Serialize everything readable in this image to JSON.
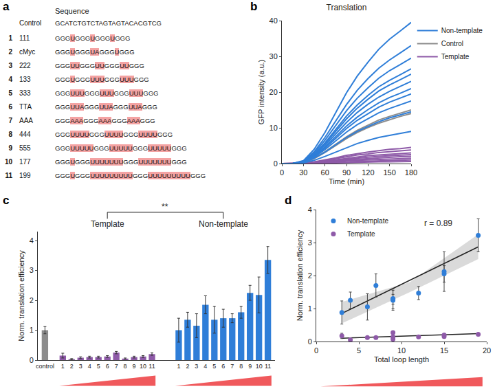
{
  "panel_labels": [
    "a",
    "b",
    "c",
    "d"
  ],
  "table": {
    "header": "Sequence",
    "control": {
      "name": "Control",
      "sequence": [
        "GCATCTGTCTAGTAGTACACGTCG"
      ]
    },
    "rows": [
      {
        "number": "1",
        "name": "111",
        "sequence": [
          "GGG",
          "U",
          "GGG",
          "U",
          "GGG",
          "U",
          "GGG"
        ]
      },
      {
        "number": "2",
        "name": "cMyc",
        "sequence": [
          "GGG",
          "U",
          "GGG",
          "UA",
          "GGG",
          "U",
          "GGG"
        ]
      },
      {
        "number": "3",
        "name": "222",
        "sequence": [
          "GGG",
          "UU",
          "GGG",
          "UU",
          "GGG",
          "UU",
          "GGG"
        ]
      },
      {
        "number": "4",
        "name": "133",
        "sequence": [
          "GGG",
          "U",
          "GGG",
          "UUU",
          "GGG",
          "UUU",
          "GGG"
        ]
      },
      {
        "number": "5",
        "name": "333",
        "sequence": [
          "GGG",
          "UUU",
          "GGG",
          "UUU",
          "GGG",
          "UUU",
          "GGG"
        ]
      },
      {
        "number": "6",
        "name": "TTA",
        "sequence": [
          "GGG",
          "UUA",
          "GGG",
          "UUA",
          "GGG",
          "UUA",
          "GGG"
        ]
      },
      {
        "number": "7",
        "name": "AAA",
        "sequence": [
          "GGG",
          "AAA",
          "GGG",
          "AAA",
          "GGG",
          "AAA",
          "GGG"
        ]
      },
      {
        "number": "8",
        "name": "444",
        "sequence": [
          "GGG",
          "UUUU",
          "GGG",
          "UUUU",
          "GGG",
          "UUUU",
          "GGG"
        ]
      },
      {
        "number": "9",
        "name": "555",
        "sequence": [
          "GGG",
          "UUUUU",
          "GGG",
          "UUUUU",
          "GGG",
          "UUUUU",
          "GGG"
        ]
      },
      {
        "number": "10",
        "name": "177",
        "sequence": [
          "GGG",
          "U",
          "GGG",
          "UUUUUUU",
          "GGG",
          "UUUUUUU",
          "GGG"
        ]
      },
      {
        "number": "11",
        "name": "199",
        "sequence": [
          "GGG",
          "U",
          "GGG",
          "UUUUUUUUU",
          "GGG",
          "UUUUUUUUU",
          "GGG"
        ]
      }
    ]
  },
  "chart_data": [
    {
      "type": "line",
      "title": "Translation",
      "xlabel": "Time (min)",
      "ylabel": "GFP intensity (a.u.)",
      "x": [
        0,
        15,
        30,
        45,
        60,
        75,
        90,
        105,
        120,
        135,
        150,
        165,
        180
      ],
      "xlim": [
        0,
        180
      ],
      "xticks": [
        0,
        30,
        60,
        90,
        120,
        150,
        180
      ],
      "ylim": [
        0,
        40
      ],
      "yticks": [
        0,
        10,
        20,
        30,
        40
      ],
      "legend": "top right",
      "series": [
        {
          "name": "Non-template",
          "color": "#2f7ed8",
          "values": [
            [
              0,
              0,
              0.8,
              4.0,
              8.7,
              14.2,
              19.8,
              24.5,
              28.4,
              32.0,
              34.8,
              37.1,
              39.5
            ],
            [
              0,
              0,
              0.7,
              3.3,
              7.3,
              11.9,
              16.5,
              20.5,
              23.8,
              26.7,
              29.0,
              31.0,
              33
            ],
            [
              0,
              0,
              0.6,
              3.0,
              6.5,
              10.6,
              14.8,
              18.3,
              21.2,
              23.9,
              26.0,
              27.7,
              29.5
            ],
            [
              0,
              0,
              0.5,
              2.7,
              5.8,
              9.5,
              13.3,
              16.4,
              19.1,
              21.5,
              23.3,
              24.9,
              26.5
            ],
            [
              0,
              0,
              0.5,
              2.5,
              5.5,
              9.0,
              12.5,
              15.5,
              18.0,
              20.3,
              22.0,
              23.5,
              25
            ],
            [
              0,
              0,
              0.5,
              2.3,
              5.1,
              8.3,
              11.5,
              14.3,
              16.6,
              18.6,
              20.2,
              21.6,
              23
            ],
            [
              0,
              0,
              0.4,
              2.1,
              4.6,
              7.6,
              10.5,
              13.0,
              15.1,
              17.0,
              18.5,
              19.7,
              21
            ],
            [
              0,
              0,
              0.4,
              2.0,
              4.3,
              7.0,
              9.8,
              12.1,
              14.0,
              15.8,
              17.2,
              18.3,
              19.5
            ],
            [
              0,
              0,
              0.4,
              1.8,
              3.9,
              6.3,
              8.8,
              10.9,
              12.6,
              14.2,
              15.4,
              16.5,
              17.5
            ],
            [
              0,
              0,
              0.3,
              1.5,
              3.2,
              5.2,
              7.3,
              9.0,
              10.4,
              11.7,
              12.8,
              13.6,
              14.5
            ],
            [
              0,
              0,
              0.2,
              0.9,
              2.0,
              3.2,
              4.5,
              5.6,
              6.5,
              7.3,
              7.9,
              8.5,
              9
            ]
          ]
        },
        {
          "name": "Control",
          "color": "#8c8c8c",
          "values": [
            [
              0,
              0,
              0.3,
              1.5,
              3.3,
              5.4,
              7.5,
              9.3,
              10.8,
              12.2,
              13.2,
              14.1,
              15
            ],
            [
              0,
              0,
              0.3,
              1.4,
              3.1,
              5.0,
              7.0,
              8.7,
              10.1,
              11.3,
              12.3,
              13.2,
              14
            ]
          ]
        },
        {
          "name": "Template",
          "color": "#8e5aa8",
          "values": [
            [
              0,
              0,
              0.1,
              0.5,
              1.0,
              1.6,
              2.3,
              2.8,
              3.2,
              3.6,
              4.0,
              4.2,
              4.5
            ],
            [
              0,
              0,
              0.1,
              0.4,
              0.8,
              1.4,
              1.9,
              2.4,
              2.7,
              3.1,
              3.3,
              3.6,
              3.8
            ],
            [
              0,
              0,
              0.1,
              0.3,
              0.7,
              1.1,
              1.5,
              1.9,
              2.2,
              2.4,
              2.6,
              2.8,
              3
            ],
            [
              0,
              0,
              0,
              0.3,
              0.6,
              0.9,
              1.3,
              1.6,
              1.8,
              2.0,
              2.2,
              2.4,
              2.5
            ],
            [
              0,
              0,
              0,
              0.2,
              0.4,
              0.7,
              1.0,
              1.2,
              1.4,
              1.6,
              1.8,
              1.9,
              2
            ],
            [
              0,
              0,
              0,
              0.2,
              0.3,
              0.5,
              0.8,
              0.9,
              1.1,
              1.2,
              1.3,
              1.4,
              1.5
            ],
            [
              0,
              0,
              0,
              0.1,
              0.2,
              0.4,
              0.5,
              0.6,
              0.7,
              0.8,
              0.9,
              0.9,
              1
            ],
            [
              0,
              0,
              0,
              0.1,
              0.1,
              0.2,
              0.3,
              0.4,
              0.4,
              0.5,
              0.5,
              0.6,
              0.6
            ]
          ]
        }
      ]
    },
    {
      "type": "bar",
      "ylabel": "Norm. translation efficiency",
      "ylim": [
        0,
        4.3
      ],
      "yticks": [
        0,
        1,
        2,
        3,
        4
      ],
      "significance": "**",
      "series": [
        {
          "categories": [
            "control"
          ],
          "color": "#8c8c8c",
          "values": [
            1.0
          ],
          "errors": [
            0.12
          ]
        },
        {
          "name": "Template",
          "color": "#8e5aa8",
          "categories": [
            "1",
            "2",
            "3",
            "4",
            "5",
            "6",
            "7",
            "8",
            "9",
            "10",
            "11"
          ],
          "values": [
            0.15,
            0.03,
            0.08,
            0.1,
            0.1,
            0.12,
            0.25,
            0.05,
            0.1,
            0.12,
            0.2
          ],
          "errors": [
            0.08,
            0.02,
            0.03,
            0.03,
            0.03,
            0.03,
            0.04,
            0.02,
            0.03,
            0.03,
            0.04
          ]
        },
        {
          "name": "Non-template",
          "color": "#2f7ed8",
          "categories": [
            "1",
            "2",
            "3",
            "4",
            "5",
            "6",
            "7",
            "8",
            "9",
            "10",
            "11"
          ],
          "values": [
            1.0,
            1.35,
            1.15,
            1.85,
            1.35,
            1.4,
            1.4,
            1.6,
            2.25,
            2.18,
            3.35
          ],
          "errors": [
            0.4,
            0.25,
            0.4,
            0.3,
            0.45,
            0.3,
            0.15,
            0.2,
            0.25,
            0.6,
            0.45
          ]
        }
      ]
    },
    {
      "type": "scatter",
      "xlabel": "Total loop length",
      "ylabel": "Norm. translation efficiency",
      "xlim": [
        0,
        20
      ],
      "xticks": [
        0,
        5,
        10,
        15,
        20
      ],
      "ylim": [
        0,
        4
      ],
      "yticks": [
        0,
        1,
        2,
        3,
        4
      ],
      "legend": "top left",
      "annotation": "r = 0.89",
      "series": [
        {
          "name": "Non-template",
          "color": "#2f7ed8",
          "x": [
            3,
            4,
            6,
            7,
            9,
            9,
            9,
            12,
            15,
            15,
            19
          ],
          "values": [
            0.88,
            1.25,
            1.05,
            1.7,
            1.25,
            1.3,
            1.28,
            1.47,
            2.05,
            2.12,
            3.22
          ],
          "errors": [
            0.35,
            0.25,
            0.4,
            0.35,
            0.3,
            0.3,
            0.15,
            0.2,
            0.25,
            0.6,
            0.5
          ],
          "fit": {
            "x": [
              3,
              19
            ],
            "values": [
              0.85,
              2.87
            ]
          },
          "band": {
            "x": [
              3,
              11,
              19
            ],
            "lower": [
              0.55,
              1.5,
              2.5
            ],
            "upper": [
              1.2,
              1.8,
              3.25
            ]
          }
        },
        {
          "name": "Template",
          "color": "#8e5aa8",
          "x": [
            3,
            4,
            6,
            7,
            9,
            9,
            9,
            12,
            15,
            15,
            19
          ],
          "values": [
            0.17,
            0.05,
            0.12,
            0.12,
            0.14,
            0.27,
            0.07,
            0.14,
            0.15,
            0.2,
            0.22
          ],
          "errors": [
            0.08,
            0.03,
            0.03,
            0.03,
            0.03,
            0.04,
            0.02,
            0.03,
            0.03,
            0.04,
            0.04
          ],
          "fit": {
            "x": [
              3,
              19
            ],
            "values": [
              0.1,
              0.24
            ]
          }
        }
      ]
    }
  ]
}
